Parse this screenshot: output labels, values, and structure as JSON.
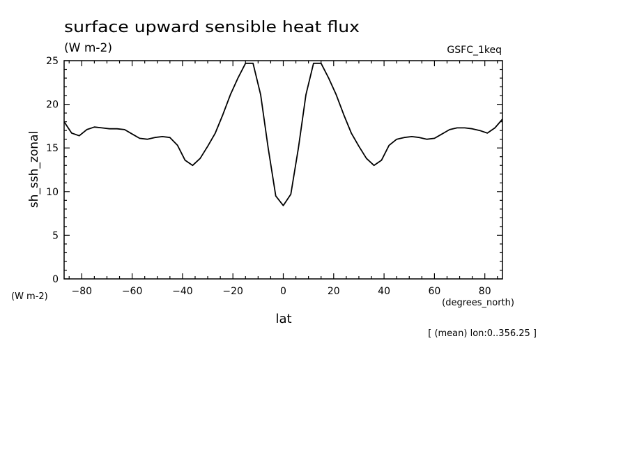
{
  "chart_data": {
    "type": "line",
    "title": "surface upward sensible heat flux",
    "units": "(W m-2)",
    "dataset": "GSFC_1keq",
    "ylabel": "sh_ssh_zonal",
    "ylabel_units": "(W m-2)",
    "xlabel": "lat",
    "xlabel_units": "(degrees_north)",
    "footnote": "[ (mean) lon:0..356.25 ]",
    "xlim": [
      -87,
      87
    ],
    "ylim": [
      0,
      25
    ],
    "xticks": [
      -80,
      -60,
      -40,
      -20,
      0,
      20,
      40,
      60,
      80
    ],
    "yticks": [
      0,
      5,
      10,
      15,
      20,
      25
    ],
    "grid": false,
    "series": [
      {
        "x": [
          -87,
          -84,
          -81,
          -78,
          -75,
          -72,
          -69,
          -66,
          -63,
          -60,
          -57,
          -54,
          -51,
          -48,
          -45,
          -42,
          -39,
          -36,
          -33,
          -30,
          -27,
          -24,
          -21,
          -18,
          -15,
          -12,
          -9,
          -6,
          -3,
          0,
          3,
          6,
          9,
          12,
          15,
          18,
          21,
          24,
          27,
          30,
          33,
          36,
          39,
          42,
          45,
          48,
          51,
          54,
          57,
          60,
          63,
          66,
          69,
          72,
          75,
          78,
          81,
          84,
          87
        ],
        "values": [
          18.0,
          16.7,
          16.4,
          17.1,
          17.4,
          17.3,
          17.2,
          17.2,
          17.1,
          16.6,
          16.1,
          16.0,
          16.2,
          16.3,
          16.2,
          15.3,
          13.6,
          13.0,
          13.8,
          15.2,
          16.7,
          18.8,
          21.1,
          23.0,
          24.7,
          24.7,
          21.1,
          15.0,
          9.5,
          8.4,
          9.7,
          15.0,
          21.1,
          24.7,
          24.7,
          23.0,
          21.1,
          18.8,
          16.7,
          15.2,
          13.8,
          13.0,
          13.6,
          15.3,
          16.0,
          16.2,
          16.3,
          16.2,
          16.0,
          16.1,
          16.6,
          17.1,
          17.3,
          17.3,
          17.2,
          17.0,
          16.7,
          17.3,
          18.3
        ]
      }
    ]
  }
}
